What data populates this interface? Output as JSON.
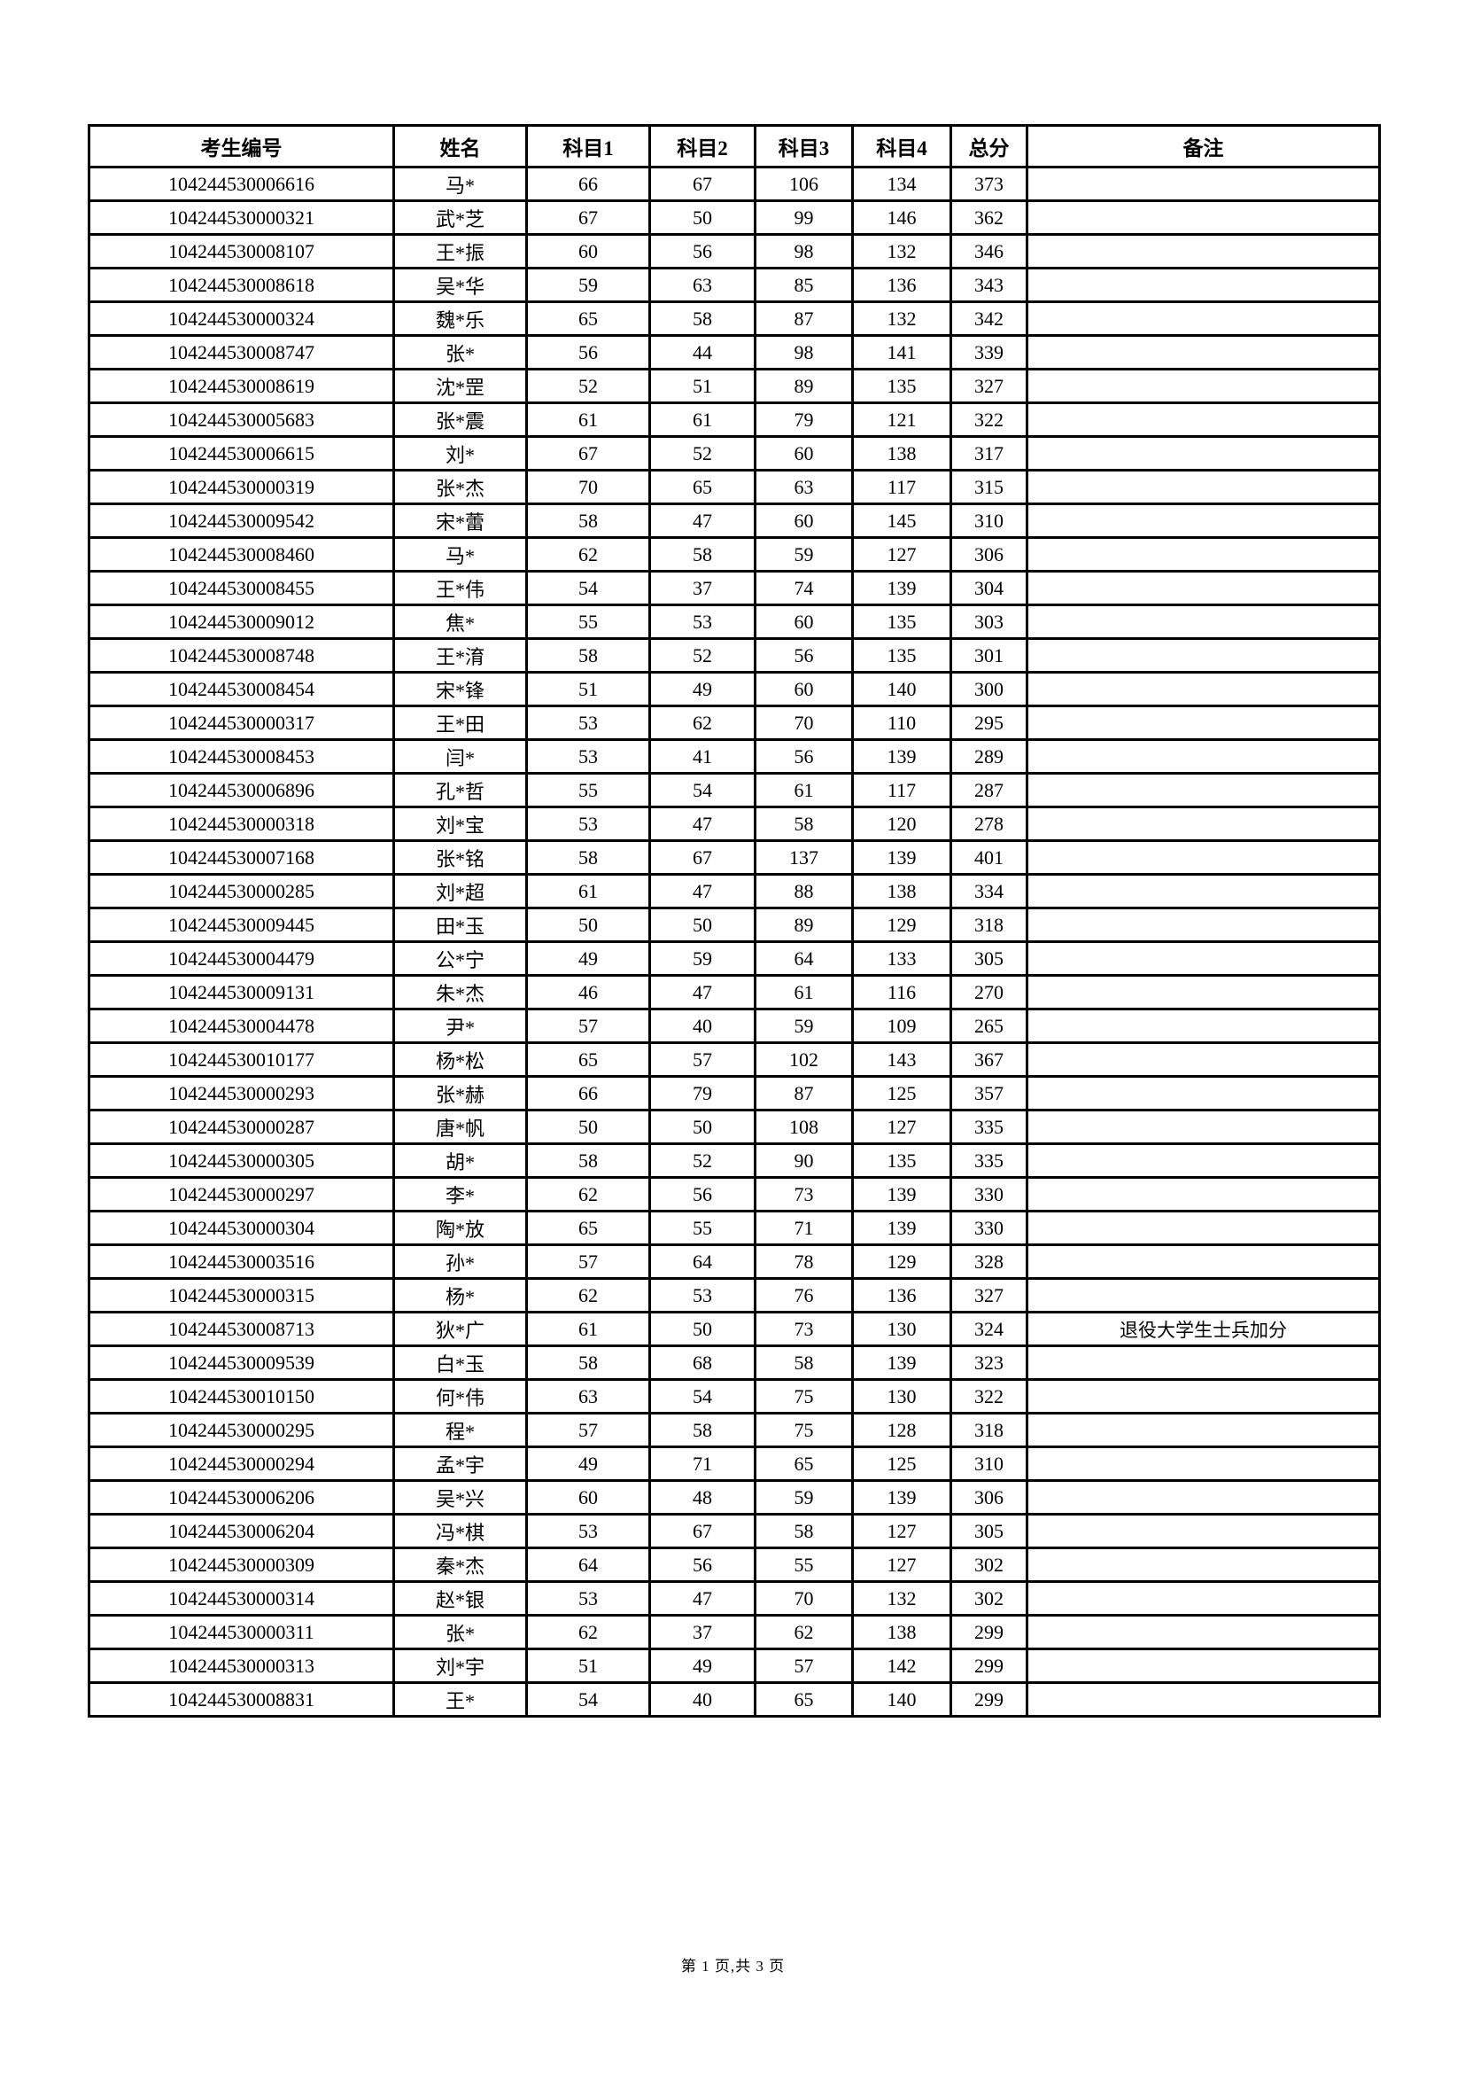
{
  "table": {
    "columns": [
      "考生编号",
      "姓名",
      "科目1",
      "科目2",
      "科目3",
      "科目4",
      "总分",
      "备注"
    ],
    "rows": [
      [
        "104244530006616",
        "马*",
        "66",
        "67",
        "106",
        "134",
        "373",
        ""
      ],
      [
        "104244530000321",
        "武*芝",
        "67",
        "50",
        "99",
        "146",
        "362",
        ""
      ],
      [
        "104244530008107",
        "王*振",
        "60",
        "56",
        "98",
        "132",
        "346",
        ""
      ],
      [
        "104244530008618",
        "吴*华",
        "59",
        "63",
        "85",
        "136",
        "343",
        ""
      ],
      [
        "104244530000324",
        "魏*乐",
        "65",
        "58",
        "87",
        "132",
        "342",
        ""
      ],
      [
        "104244530008747",
        "张*",
        "56",
        "44",
        "98",
        "141",
        "339",
        ""
      ],
      [
        "104244530008619",
        "沈*罡",
        "52",
        "51",
        "89",
        "135",
        "327",
        ""
      ],
      [
        "104244530005683",
        "张*震",
        "61",
        "61",
        "79",
        "121",
        "322",
        ""
      ],
      [
        "104244530006615",
        "刘*",
        "67",
        "52",
        "60",
        "138",
        "317",
        ""
      ],
      [
        "104244530000319",
        "张*杰",
        "70",
        "65",
        "63",
        "117",
        "315",
        ""
      ],
      [
        "104244530009542",
        "宋*蕾",
        "58",
        "47",
        "60",
        "145",
        "310",
        ""
      ],
      [
        "104244530008460",
        "马*",
        "62",
        "58",
        "59",
        "127",
        "306",
        ""
      ],
      [
        "104244530008455",
        "王*伟",
        "54",
        "37",
        "74",
        "139",
        "304",
        ""
      ],
      [
        "104244530009012",
        "焦*",
        "55",
        "53",
        "60",
        "135",
        "303",
        ""
      ],
      [
        "104244530008748",
        "王*淯",
        "58",
        "52",
        "56",
        "135",
        "301",
        ""
      ],
      [
        "104244530008454",
        "宋*锋",
        "51",
        "49",
        "60",
        "140",
        "300",
        ""
      ],
      [
        "104244530000317",
        "王*田",
        "53",
        "62",
        "70",
        "110",
        "295",
        ""
      ],
      [
        "104244530008453",
        "闫*",
        "53",
        "41",
        "56",
        "139",
        "289",
        ""
      ],
      [
        "104244530006896",
        "孔*哲",
        "55",
        "54",
        "61",
        "117",
        "287",
        ""
      ],
      [
        "104244530000318",
        "刘*宝",
        "53",
        "47",
        "58",
        "120",
        "278",
        ""
      ],
      [
        "104244530007168",
        "张*铭",
        "58",
        "67",
        "137",
        "139",
        "401",
        ""
      ],
      [
        "104244530000285",
        "刘*超",
        "61",
        "47",
        "88",
        "138",
        "334",
        ""
      ],
      [
        "104244530009445",
        "田*玉",
        "50",
        "50",
        "89",
        "129",
        "318",
        ""
      ],
      [
        "104244530004479",
        "公*宁",
        "49",
        "59",
        "64",
        "133",
        "305",
        ""
      ],
      [
        "104244530009131",
        "朱*杰",
        "46",
        "47",
        "61",
        "116",
        "270",
        ""
      ],
      [
        "104244530004478",
        "尹*",
        "57",
        "40",
        "59",
        "109",
        "265",
        ""
      ],
      [
        "104244530010177",
        "杨*松",
        "65",
        "57",
        "102",
        "143",
        "367",
        ""
      ],
      [
        "104244530000293",
        "张*赫",
        "66",
        "79",
        "87",
        "125",
        "357",
        ""
      ],
      [
        "104244530000287",
        "唐*帆",
        "50",
        "50",
        "108",
        "127",
        "335",
        ""
      ],
      [
        "104244530000305",
        "胡*",
        "58",
        "52",
        "90",
        "135",
        "335",
        ""
      ],
      [
        "104244530000297",
        "李*",
        "62",
        "56",
        "73",
        "139",
        "330",
        ""
      ],
      [
        "104244530000304",
        "陶*放",
        "65",
        "55",
        "71",
        "139",
        "330",
        ""
      ],
      [
        "104244530003516",
        "孙*",
        "57",
        "64",
        "78",
        "129",
        "328",
        ""
      ],
      [
        "104244530000315",
        "杨*",
        "62",
        "53",
        "76",
        "136",
        "327",
        ""
      ],
      [
        "104244530008713",
        "狄*广",
        "61",
        "50",
        "73",
        "130",
        "324",
        "退役大学生士兵加分"
      ],
      [
        "104244530009539",
        "白*玉",
        "58",
        "68",
        "58",
        "139",
        "323",
        ""
      ],
      [
        "104244530010150",
        "何*伟",
        "63",
        "54",
        "75",
        "130",
        "322",
        ""
      ],
      [
        "104244530000295",
        "程*",
        "57",
        "58",
        "75",
        "128",
        "318",
        ""
      ],
      [
        "104244530000294",
        "孟*宇",
        "49",
        "71",
        "65",
        "125",
        "310",
        ""
      ],
      [
        "104244530006206",
        "吴*兴",
        "60",
        "48",
        "59",
        "139",
        "306",
        ""
      ],
      [
        "104244530006204",
        "冯*棋",
        "53",
        "67",
        "58",
        "127",
        "305",
        ""
      ],
      [
        "104244530000309",
        "秦*杰",
        "64",
        "56",
        "55",
        "127",
        "302",
        ""
      ],
      [
        "104244530000314",
        "赵*银",
        "53",
        "47",
        "70",
        "132",
        "302",
        ""
      ],
      [
        "104244530000311",
        "张*",
        "62",
        "37",
        "62",
        "138",
        "299",
        ""
      ],
      [
        "104244530000313",
        "刘*宇",
        "51",
        "49",
        "57",
        "142",
        "299",
        ""
      ],
      [
        "104244530008831",
        "王*",
        "54",
        "40",
        "65",
        "140",
        "299",
        ""
      ]
    ]
  },
  "footer": {
    "page_text": "第 1 页,共 3 页"
  }
}
